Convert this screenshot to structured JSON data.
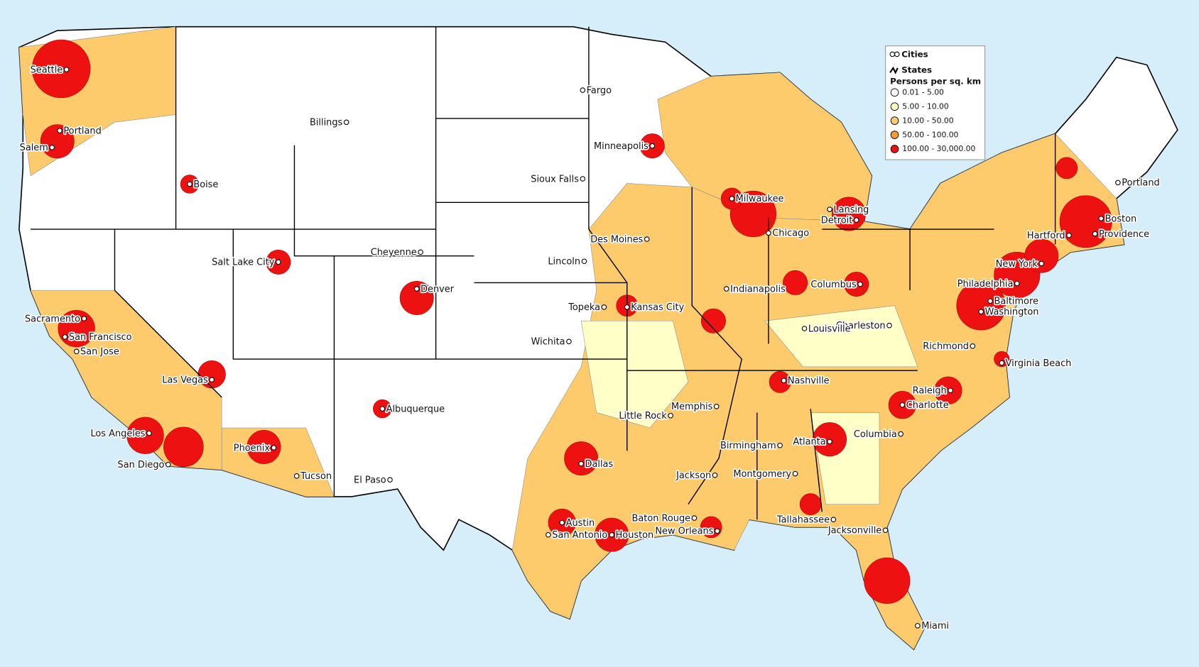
{
  "legend": {
    "layers": [
      "Cities",
      "States"
    ],
    "title": "Persons per sq. km",
    "classes": [
      {
        "label": "0.01 - 5.00",
        "color": "#ffffff"
      },
      {
        "label": "5.00 - 10.00",
        "color": "#ffffc8"
      },
      {
        "label": "10.00 - 50.00",
        "color": "#fdca6c"
      },
      {
        "label": "50.00 - 100.00",
        "color": "#f79a35"
      },
      {
        "label": "100.00 - 30,000.00",
        "color": "#ee1111"
      }
    ]
  },
  "cities": [
    "Seattle",
    "Portland",
    "Salem",
    "Boise",
    "Billings",
    "Fargo",
    "Minneapolis",
    "Sioux Falls",
    "Salt Lake City",
    "Cheyenne",
    "Denver",
    "Des Moines",
    "Lincoln",
    "Topeka",
    "Kansas City",
    "Wichita",
    "Milwaukee",
    "Chicago",
    "Lansing",
    "Detroit",
    "Indianapolis",
    "Columbus",
    "Charleston",
    "Louisville",
    "Nashville",
    "Memphis",
    "Little Rock",
    "Birmingham",
    "Atlanta",
    "Montgomery",
    "Jackson",
    "Baton Rouge",
    "New Orleans",
    "Tallahassee",
    "Jacksonville",
    "Miami",
    "Columbia",
    "Charlotte",
    "Raleigh",
    "Richmond",
    "Virginia Beach",
    "Washington",
    "Baltimore",
    "Philadelphia",
    "New York",
    "Hartford",
    "Providence",
    "Boston",
    "Portland",
    "Houston",
    "Austin",
    "San Antonio",
    "Dallas",
    "El Paso",
    "Albuquerque",
    "Tucson",
    "Phoenix",
    "San Diego",
    "Los Angeles",
    "Las Vegas",
    "San Francisco",
    "San Jose",
    "Sacramento"
  ]
}
